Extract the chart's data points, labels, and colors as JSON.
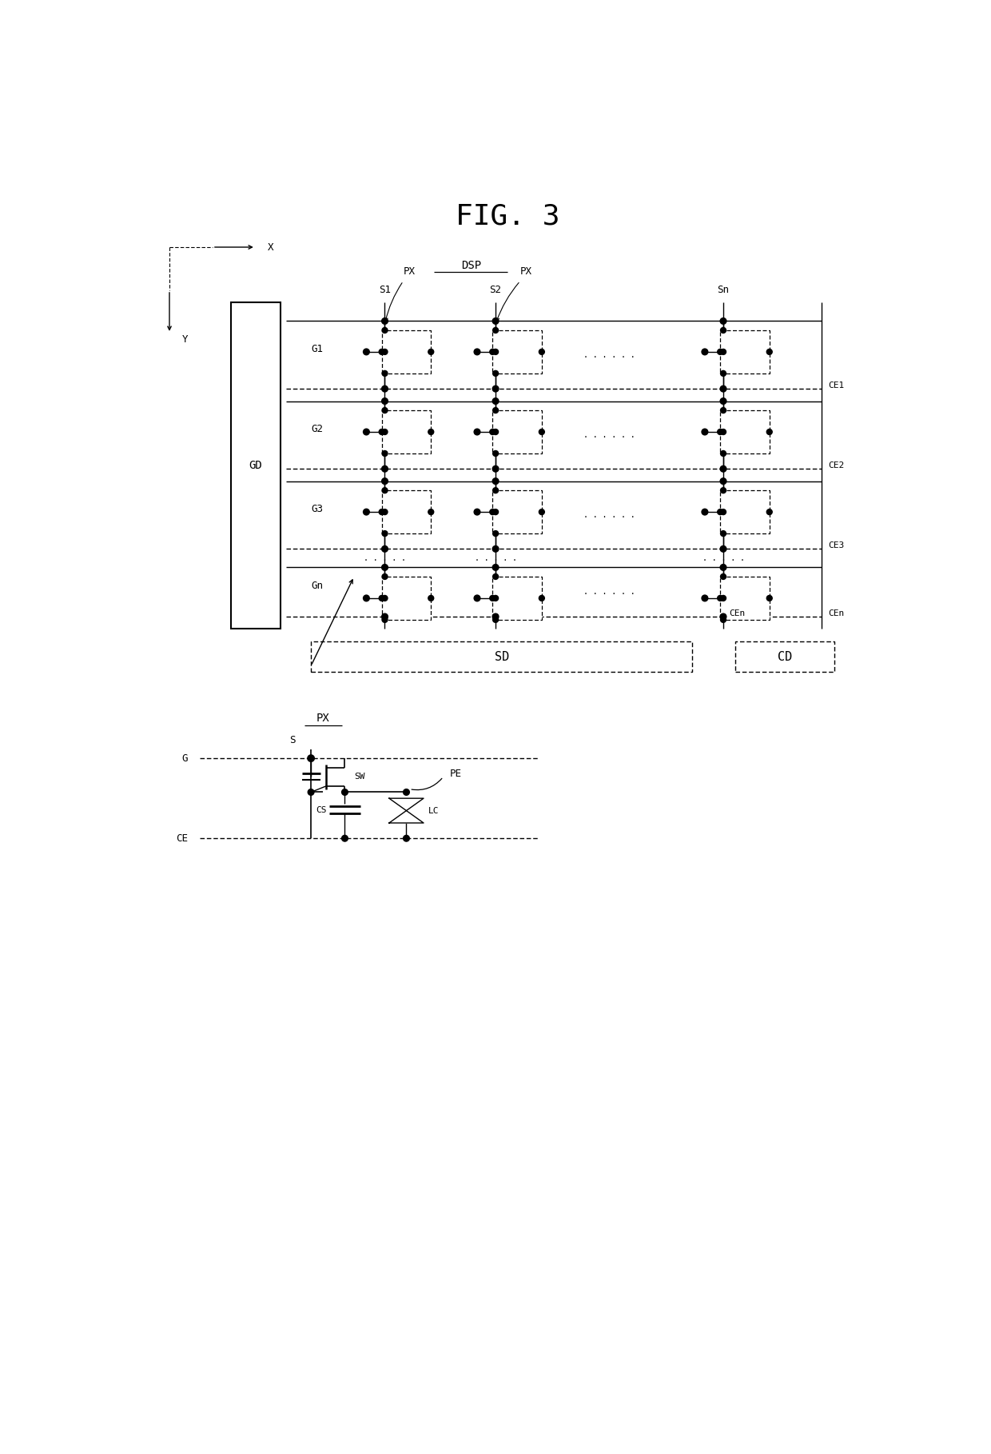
{
  "title": "FIG. 3",
  "dsp_label": "DSP",
  "background_color": "#ffffff",
  "line_color": "#000000",
  "fig_width": 12.4,
  "fig_height": 18.18,
  "gate_rows": [
    "G1",
    "G2",
    "G3",
    "Gn"
  ],
  "source_cols": [
    "S1",
    "S2",
    "Sn"
  ],
  "ce_labels": [
    "CE1",
    "CE2",
    "CE3",
    "CEn"
  ],
  "px_label": "PX",
  "gd_label": "GD",
  "sd_label": "SD",
  "cd_label": "CD",
  "px_detail_label": "PX",
  "s_label": "S",
  "g_label": "G",
  "ce_label": "CE",
  "sw_label": "SW",
  "cs_label": "CS",
  "lc_label": "LC",
  "pe_label": "PE",
  "dots_label": "........."
}
